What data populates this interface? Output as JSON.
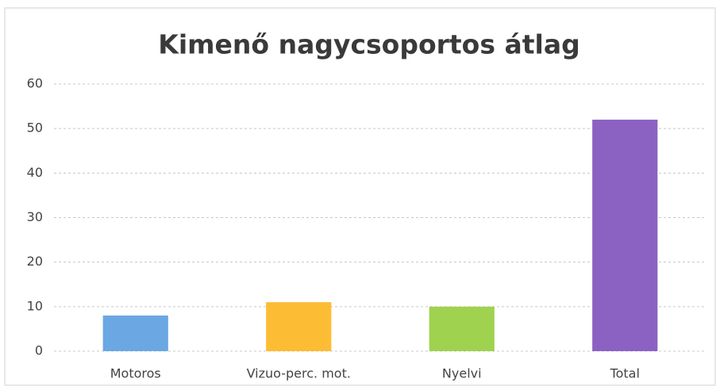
{
  "chart_data": {
    "type": "bar",
    "title": "Kimenő nagycsoportos átlag",
    "categories": [
      "Motoros",
      "Vizuo-perc. mot.",
      "Nyelvi",
      "Total"
    ],
    "values": [
      8,
      11,
      10,
      52
    ],
    "colors": [
      "#6aa7e3",
      "#fcbc34",
      "#9fd24f",
      "#8b62c2"
    ],
    "ylim": [
      0,
      60
    ],
    "yticks": [
      0,
      10,
      20,
      30,
      40,
      50,
      60
    ],
    "grid": true
  }
}
